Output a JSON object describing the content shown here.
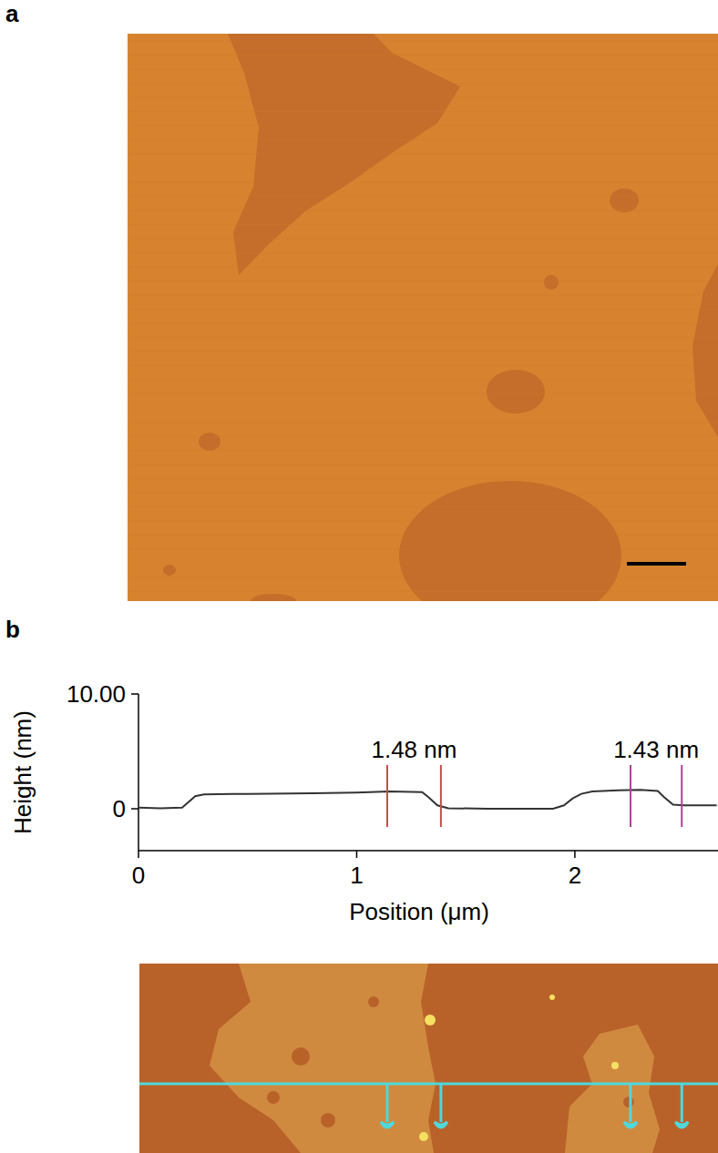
{
  "panel_labels": [
    "a",
    "b"
  ],
  "chart_data": {
    "type": "line",
    "x_label": "Position (μm)",
    "y_label": "Height (nm)",
    "x": [
      0,
      0.1,
      0.2,
      0.23,
      0.26,
      0.3,
      0.5,
      0.8,
      1.0,
      1.15,
      1.3,
      1.33,
      1.37,
      1.42,
      1.6,
      1.9,
      1.95,
      1.99,
      2.03,
      2.08,
      2.2,
      2.3,
      2.38,
      2.41,
      2.45,
      2.5,
      2.65
    ],
    "values": [
      0.1,
      0.05,
      0.1,
      0.6,
      1.1,
      1.25,
      1.3,
      1.35,
      1.4,
      1.5,
      1.45,
      1.0,
      0.3,
      0.05,
      0.0,
      0.0,
      0.3,
      0.9,
      1.3,
      1.5,
      1.6,
      1.65,
      1.55,
      1.0,
      0.35,
      0.3,
      0.3
    ],
    "color": "#333333",
    "xlim": [
      0,
      2.656
    ],
    "ylim": [
      -3.65,
      10
    ],
    "xticks": [
      0,
      1,
      2
    ],
    "yticks": [
      0,
      {
        "value": 10,
        "label": "10.00"
      }
    ],
    "grid": false,
    "cursors": [
      {
        "label": "1.48 nm",
        "x": [
          1.14,
          1.386
        ],
        "color": "#c0504d"
      },
      {
        "label": "1.43 nm",
        "x": [
          2.255,
          2.49
        ],
        "color": "#b0409c"
      }
    ]
  }
}
